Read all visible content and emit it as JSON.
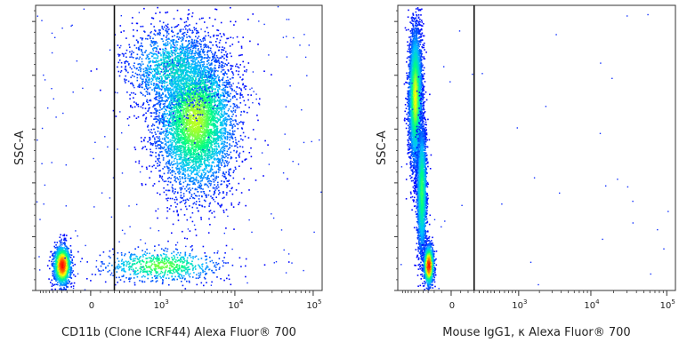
{
  "chart_data": [
    {
      "type": "scatter",
      "subtype": "flow-cytometry-density-dot-plot",
      "xlabel": "CD11b (Clone ICRF44) Alexa Fluor® 700",
      "ylabel": "SSC-A",
      "x_scale": "biexponential",
      "x_ticks": [
        {
          "value": 0,
          "base": "0",
          "exp": ""
        },
        {
          "value": 1000,
          "base": "10",
          "exp": "3"
        },
        {
          "value": 10000,
          "base": "10",
          "exp": "4"
        },
        {
          "value": 100000,
          "base": "10",
          "exp": "5"
        }
      ],
      "gate_x": 150,
      "grid": false,
      "colormap": [
        "#0000ff",
        "#00bfff",
        "#00ff80",
        "#ffff00",
        "#ff8000",
        "#ff0000"
      ],
      "populations": [
        {
          "x_center": 3000,
          "y_fraction": 0.6,
          "x_spread_decades": 0.23,
          "y_spread": 0.13,
          "events": 5200,
          "peak_density": 0.55
        },
        {
          "x_center": 1500,
          "y_fraction": 0.78,
          "x_spread_decades": 0.28,
          "y_spread": 0.08,
          "events": 1400,
          "peak_density": 0.3
        },
        {
          "x_center": -200,
          "y_fraction": 0.09,
          "x_spread_decades": 0.05,
          "y_spread": 0.035,
          "events": 1400,
          "peak_density": 1.0
        },
        {
          "x_center": 1000,
          "y_fraction": 0.09,
          "x_spread_decades": 0.35,
          "y_spread": 0.03,
          "events": 700,
          "peak_density": 0.5
        }
      ]
    },
    {
      "type": "scatter",
      "subtype": "flow-cytometry-density-dot-plot",
      "xlabel": "Mouse IgG1, κ Alexa Fluor® 700",
      "ylabel": "SSC-A",
      "x_scale": "biexponential",
      "x_ticks": [
        {
          "value": 0,
          "base": "0",
          "exp": ""
        },
        {
          "value": 1000,
          "base": "10",
          "exp": "3"
        },
        {
          "value": 10000,
          "base": "10",
          "exp": "4"
        },
        {
          "value": 100000,
          "base": "10",
          "exp": "5"
        }
      ],
      "gate_x": 150,
      "grid": false,
      "colormap": [
        "#0000ff",
        "#00bfff",
        "#00ff80",
        "#ffff00",
        "#ff8000",
        "#ff0000"
      ],
      "populations": [
        {
          "x_center": -300,
          "y_fraction": 0.68,
          "x_spread_decades": 0.04,
          "y_spread": 0.12,
          "events": 4000,
          "peak_density": 0.6
        },
        {
          "x_center": -220,
          "y_fraction": 0.35,
          "x_spread_decades": 0.03,
          "y_spread": 0.12,
          "events": 2200,
          "peak_density": 0.45
        },
        {
          "x_center": -150,
          "y_fraction": 0.09,
          "x_spread_decades": 0.03,
          "y_spread": 0.035,
          "events": 1300,
          "peak_density": 1.0
        }
      ]
    }
  ]
}
